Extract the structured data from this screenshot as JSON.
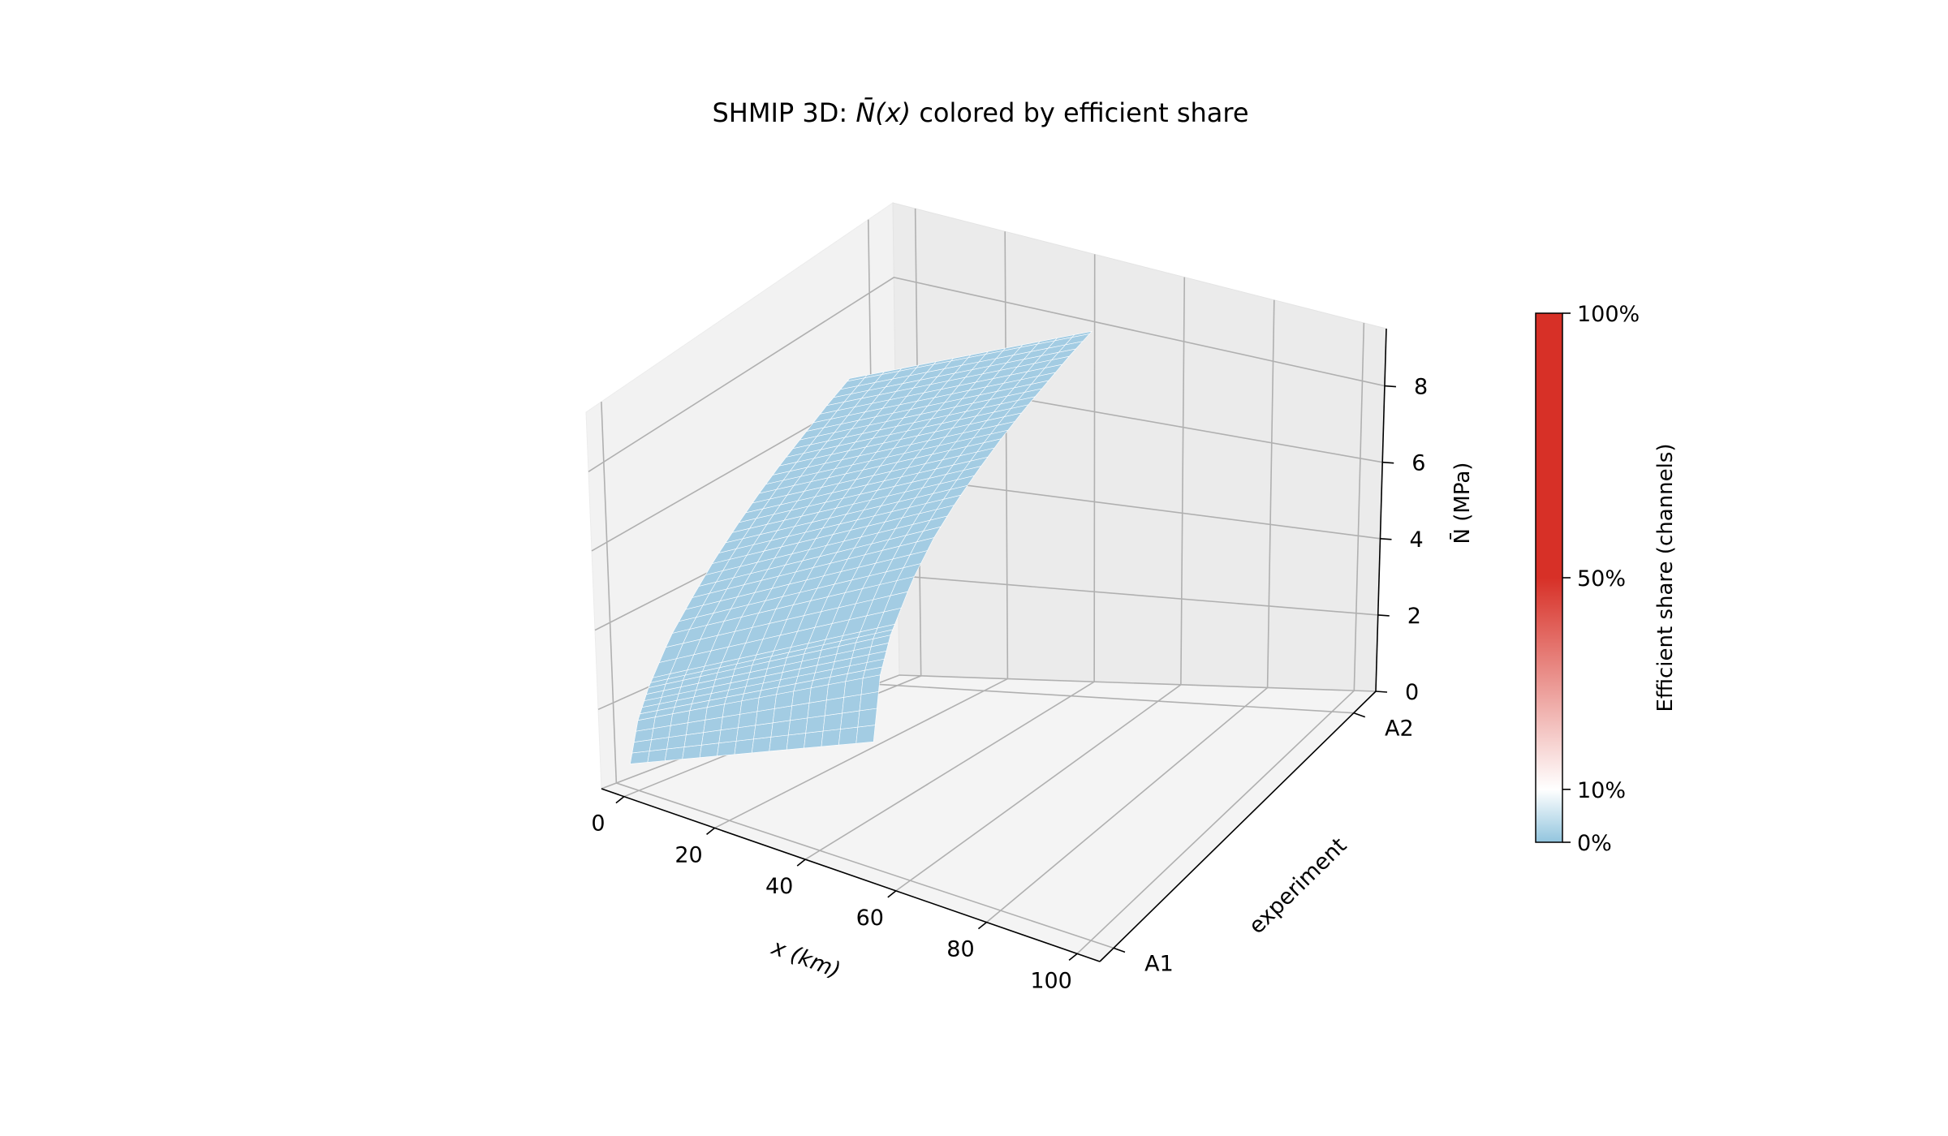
{
  "chart_data": {
    "type": "surface3d",
    "title_prefix": "SHMIP 3D: ",
    "title_symbol": "N̄",
    "title_arg": "(x)",
    "title_suffix": " colored by efficient share",
    "x_axis": {
      "label": "x (km)",
      "ticks": [
        0,
        20,
        40,
        60,
        80,
        100
      ],
      "range": [
        -5,
        105
      ]
    },
    "y_axis": {
      "label": "experiment",
      "ticks": [
        "A1",
        "A2"
      ]
    },
    "z_axis": {
      "label": "N̄ (MPa)",
      "ticks": [
        0,
        2,
        4,
        6,
        8
      ],
      "range": [
        0,
        9.5
      ]
    },
    "surface": {
      "series": [
        {
          "name": "A1",
          "x": [
            0,
            5,
            10,
            20,
            30,
            40,
            50,
            60,
            70,
            80,
            90,
            100
          ],
          "z": [
            0,
            2.0,
            2.8,
            3.7,
            4.3,
            4.7,
            5.0,
            5.25,
            5.45,
            5.6,
            5.75,
            5.85
          ]
        },
        {
          "name": "A2",
          "x": [
            0,
            5,
            10,
            20,
            30,
            40,
            50,
            60,
            70,
            80,
            90,
            100
          ],
          "z": [
            0,
            1.2,
            1.8,
            2.6,
            3.1,
            3.55,
            3.9,
            4.2,
            4.45,
            4.65,
            4.85,
            5.0
          ]
        }
      ],
      "efficient_share": 0,
      "face_color": "#a3cce3",
      "edge_color": "#ffffff"
    },
    "colorbar": {
      "label": "Efficient share (channels)",
      "ticks": [
        "100%",
        "50%",
        "10%",
        "0%"
      ],
      "tick_values": [
        1.0,
        0.5,
        0.1,
        0.0
      ],
      "colors": {
        "low": "#92c5de",
        "mid": "#ffffff",
        "high": "#d73027"
      }
    },
    "grid": true,
    "legend": "none"
  }
}
